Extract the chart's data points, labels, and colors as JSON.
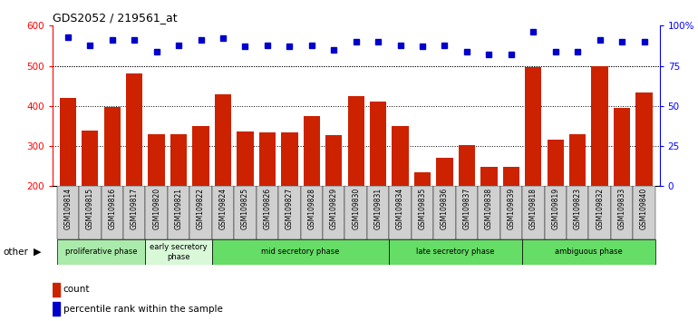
{
  "title": "GDS2052 / 219561_at",
  "categories": [
    "GSM109814",
    "GSM109815",
    "GSM109816",
    "GSM109817",
    "GSM109820",
    "GSM109821",
    "GSM109822",
    "GSM109824",
    "GSM109825",
    "GSM109826",
    "GSM109827",
    "GSM109828",
    "GSM109829",
    "GSM109830",
    "GSM109831",
    "GSM109834",
    "GSM109835",
    "GSM109836",
    "GSM109837",
    "GSM109838",
    "GSM109839",
    "GSM109818",
    "GSM109819",
    "GSM109823",
    "GSM109832",
    "GSM109833",
    "GSM109840"
  ],
  "counts": [
    420,
    338,
    398,
    480,
    330,
    330,
    350,
    430,
    336,
    335,
    333,
    375,
    328,
    425,
    412,
    350,
    235,
    270,
    302,
    248,
    248,
    496,
    315,
    330,
    500,
    395,
    433
  ],
  "percentiles": [
    93,
    88,
    91,
    91,
    84,
    88,
    91,
    92,
    87,
    88,
    87,
    88,
    85,
    90,
    90,
    88,
    87,
    88,
    84,
    82,
    82,
    96,
    84,
    84,
    91,
    90,
    90
  ],
  "phases": [
    {
      "label": "proliferative phase",
      "start": 0,
      "end": 3,
      "color": "#aaeaaa"
    },
    {
      "label": "early secretory\nphase",
      "start": 4,
      "end": 6,
      "color": "#d8f8d8"
    },
    {
      "label": "mid secretory phase",
      "start": 7,
      "end": 14,
      "color": "#66dd66"
    },
    {
      "label": "late secretory phase",
      "start": 15,
      "end": 20,
      "color": "#66dd66"
    },
    {
      "label": "ambiguous phase",
      "start": 21,
      "end": 26,
      "color": "#66dd66"
    }
  ],
  "bar_color": "#cc2200",
  "dot_color": "#0000cc",
  "ylim_left": [
    200,
    600
  ],
  "ylim_right": [
    0,
    100
  ],
  "yticks_left": [
    200,
    300,
    400,
    500,
    600
  ],
  "yticks_right": [
    0,
    25,
    50,
    75,
    100
  ],
  "grid_values": [
    300,
    400,
    500
  ],
  "tick_bg_color": "#d0d0d0",
  "plot_bg_color": "#ffffff"
}
